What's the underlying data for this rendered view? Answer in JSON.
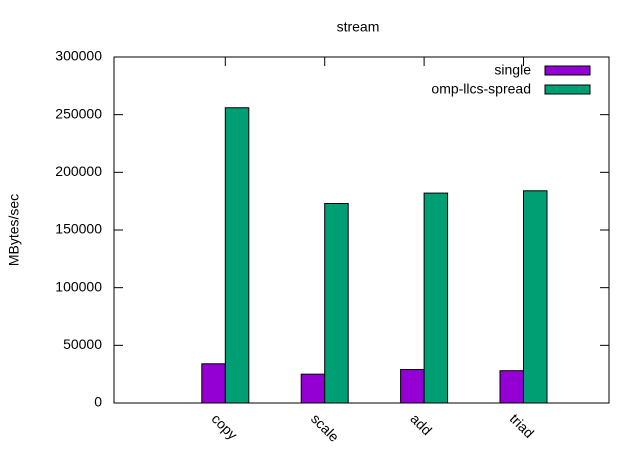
{
  "chart_data": {
    "type": "bar",
    "title": "stream",
    "y_label": "MBytes/sec",
    "categories": [
      "copy",
      "scale",
      "add",
      "triad"
    ],
    "series": [
      {
        "name": "single",
        "color": "#9400d3",
        "values": [
          34000,
          25000,
          29000,
          28000
        ]
      },
      {
        "name": "omp-llcs-spread",
        "color": "#009e73",
        "values": [
          256000,
          173000,
          182000,
          184000
        ]
      }
    ],
    "ylim": [
      0,
      300000
    ],
    "yticks": [
      0,
      50000,
      100000,
      150000,
      200000,
      250000,
      300000
    ],
    "legend": "top-right"
  }
}
